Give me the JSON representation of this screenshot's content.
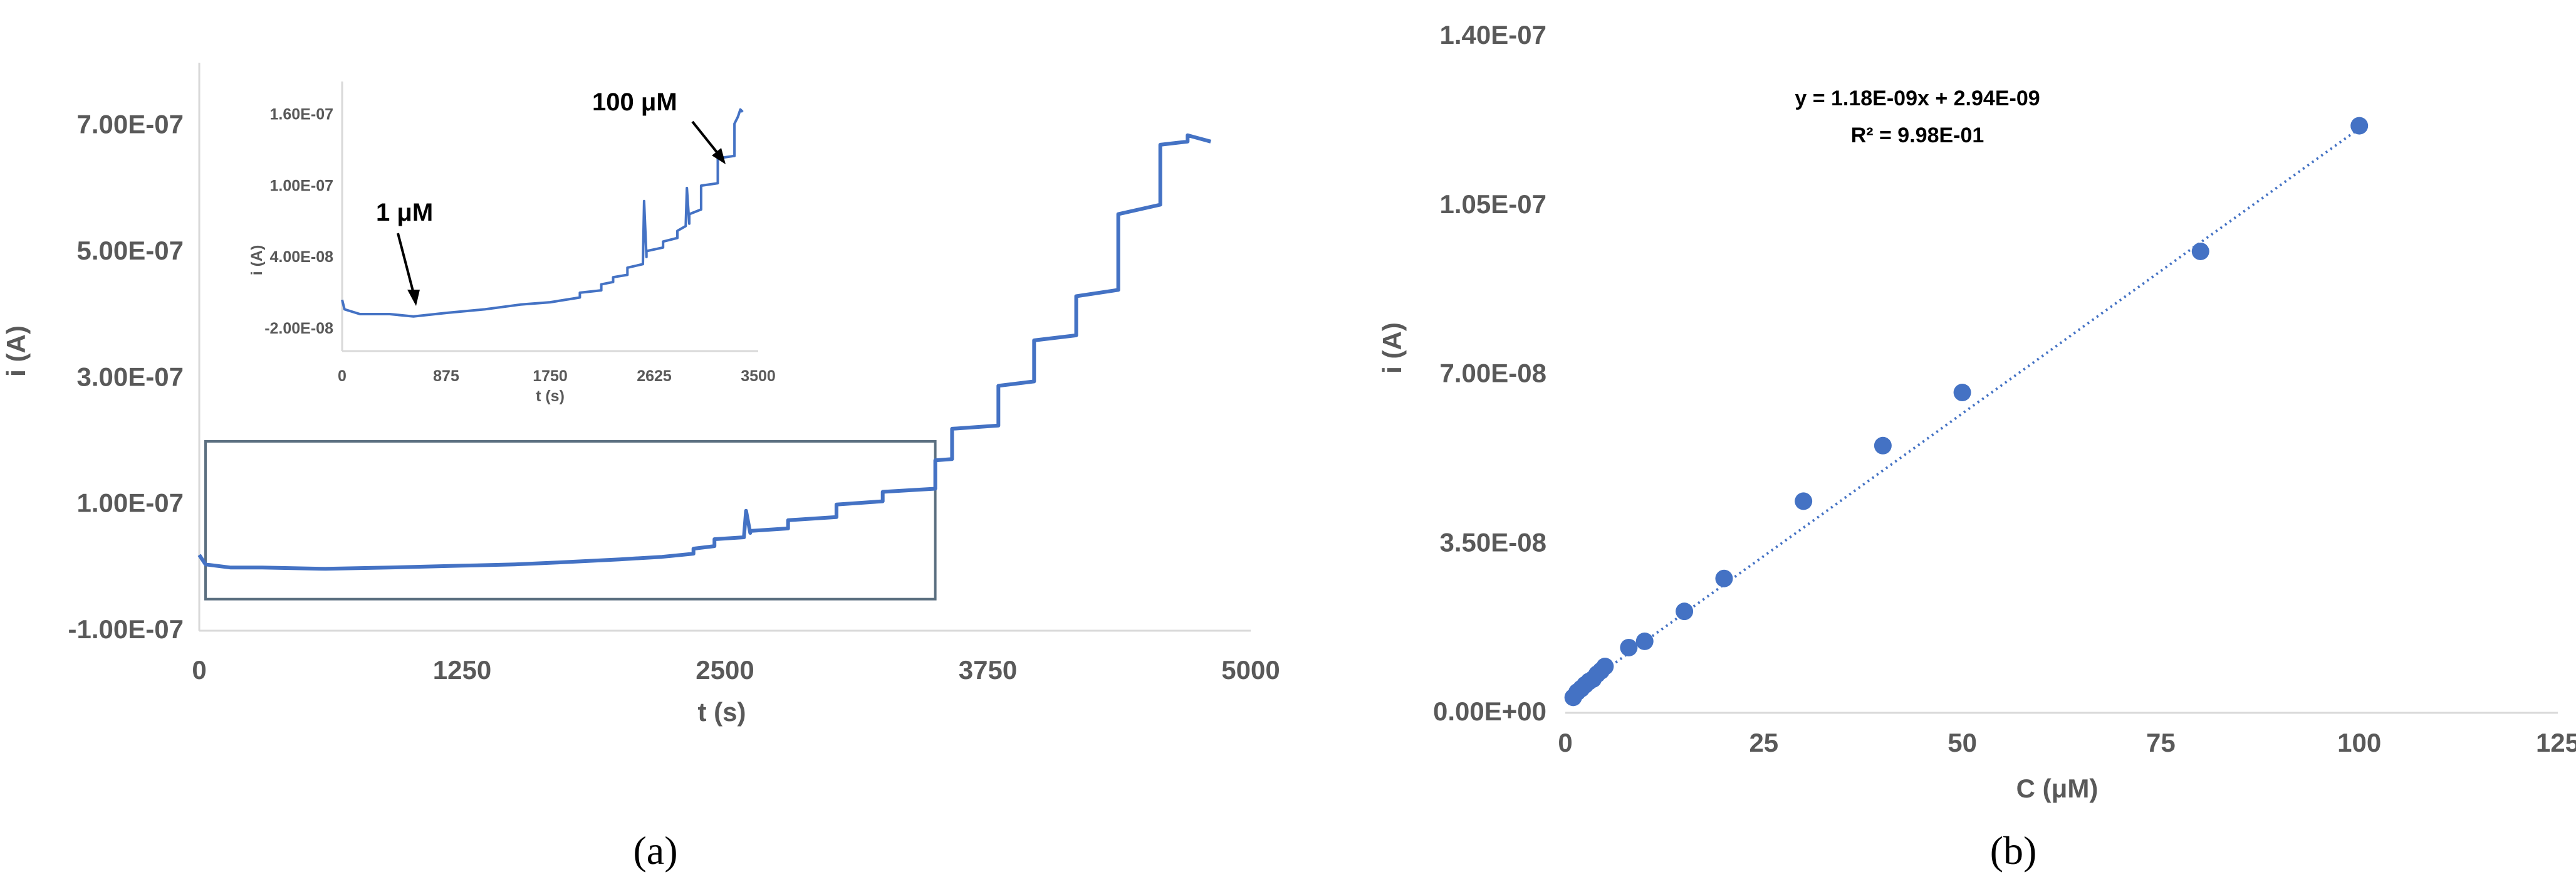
{
  "colors": {
    "series": "#4472C4",
    "axis": "#D9D9D9",
    "text": "#595959",
    "box": "#5B6F80"
  },
  "panel_labels": [
    "(a)",
    "(b)"
  ],
  "chart_data": [
    {
      "id": "a",
      "type": "line",
      "xlabel": "t (s)",
      "ylabel": "i (A)",
      "xlim": [
        0,
        5000
      ],
      "ylim": [
        -1e-07,
        8e-07
      ],
      "xticks": [
        0,
        1250,
        2500,
        3750,
        5000
      ],
      "xtick_labels": [
        "0",
        "1250",
        "2500",
        "3750",
        "5000"
      ],
      "yticks": [
        -1e-07,
        1e-07,
        3e-07,
        5e-07,
        7e-07
      ],
      "ytick_labels": [
        "-1.00E-07",
        "1.00E-07",
        "3.00E-07",
        "5.00E-07",
        "7.00E-07"
      ],
      "grid": false,
      "zoom_box": {
        "x": [
          0,
          3500
        ],
        "y": [
          -5e-08,
          2e-07
        ]
      },
      "series": [
        {
          "x": [
            0,
            30,
            150,
            300,
            600,
            900,
            1250,
            1500,
            1700,
            2000,
            2200,
            2350,
            2350,
            2450,
            2450,
            2590,
            2600,
            2620,
            2620,
            2800,
            2800,
            3030,
            3030,
            3250,
            3250,
            3500,
            3500,
            3580,
            3580,
            3800,
            3800,
            3970,
            3970,
            4170,
            4170,
            4370,
            4370,
            4570,
            4570,
            4700,
            4700,
            4810
          ],
          "y": [
            2e-08,
            5e-09,
            0.0,
            0.0,
            -2e-09,
            0.0,
            3e-09,
            5e-09,
            8e-09,
            1.3e-08,
            1.7e-08,
            2.2e-08,
            3e-08,
            3.4e-08,
            4.5e-08,
            4.8e-08,
            9e-08,
            5.5e-08,
            5.8e-08,
            6.2e-08,
            7.5e-08,
            8e-08,
            1e-07,
            1.05e-07,
            1.2e-07,
            1.25e-07,
            1.7e-07,
            1.72e-07,
            2.2e-07,
            2.25e-07,
            2.88e-07,
            2.95e-07,
            3.6e-07,
            3.68e-07,
            4.3e-07,
            4.4e-07,
            5.6e-07,
            5.75e-07,
            6.7e-07,
            6.75e-07,
            6.85e-07,
            6.75e-07
          ]
        }
      ]
    },
    {
      "id": "a-inset",
      "type": "line",
      "xlabel": "t (s)",
      "ylabel": "i (A)",
      "xlim": [
        0,
        3500
      ],
      "ylim": [
        -2e-08,
        1.75e-07
      ],
      "xticks": [
        0,
        875,
        1750,
        2625,
        3500
      ],
      "xtick_labels": [
        "0",
        "875",
        "1750",
        "2625",
        "3500"
      ],
      "yticks": [
        -2e-08,
        4e-08,
        1e-07,
        1.6e-07
      ],
      "ytick_labels": [
        "-2.00E-08",
        "4.00E-08",
        "1.00E-07",
        "1.60E-07"
      ],
      "grid": false,
      "annotations": [
        {
          "text": "1 μM",
          "x": 620,
          "y": -1.2e-08
        },
        {
          "text": "100 μM",
          "x": 3210,
          "y": 1.24e-07
        }
      ],
      "series": [
        {
          "x": [
            0,
            20,
            150,
            400,
            600,
            875,
            1200,
            1500,
            1750,
            2000,
            2000,
            2180,
            2180,
            2280,
            2280,
            2400,
            2400,
            2530,
            2540,
            2560,
            2560,
            2700,
            2700,
            2820,
            2820,
            2890,
            2900,
            2920,
            2920,
            3020,
            3020,
            3160,
            3160,
            3300,
            3300,
            3330,
            3350,
            3370
          ],
          "y": [
            2e-09,
            -6e-09,
            -1e-08,
            -1e-08,
            -1.2e-08,
            -9e-09,
            -6e-09,
            -2e-09,
            0.0,
            4e-09,
            8e-09,
            1e-08,
            1.5e-08,
            1.7e-08,
            2.1e-08,
            2.3e-08,
            2.9e-08,
            3.2e-08,
            8.5e-08,
            3.8e-08,
            4.3e-08,
            4.6e-08,
            5.1e-08,
            5.4e-08,
            6e-08,
            6.4e-08,
            9.6e-08,
            6.6e-08,
            7.4e-08,
            7.8e-08,
            9.8e-08,
            1e-07,
            1.21e-07,
            1.23e-07,
            1.5e-07,
            1.56e-07,
            1.62e-07,
            1.6e-07
          ]
        }
      ]
    },
    {
      "id": "b",
      "type": "scatter",
      "xlabel": "C (μM)",
      "ylabel": "i (A)",
      "xlim": [
        0,
        125
      ],
      "ylim": [
        0,
        1.4e-07
      ],
      "xticks": [
        0,
        25,
        50,
        75,
        100,
        125
      ],
      "xtick_labels": [
        "0",
        "25",
        "50",
        "75",
        "100",
        "125"
      ],
      "yticks": [
        0,
        3.5e-08,
        7e-08,
        1.05e-07,
        1.4e-07
      ],
      "ytick_labels": [
        "0.00E+00",
        "3.50E-08",
        "7.00E-08",
        "1.05E-07",
        "1.40E-07"
      ],
      "grid": false,
      "trendline": {
        "slope": 1.18e-09,
        "intercept": 2.94e-09,
        "x": [
          0,
          100
        ]
      },
      "equation": "y = 1.18E-09x + 2.94E-09",
      "r_squared": "R² = 9.98E-01",
      "series": [
        {
          "x": [
            1,
            1.5,
            2,
            2.5,
            3,
            3.5,
            4,
            4.5,
            5,
            8,
            10,
            15,
            20,
            30,
            40,
            50,
            80,
            100
          ],
          "y": [
            3.2e-09,
            4.3e-09,
            5e-09,
            5.8e-09,
            6.5e-09,
            7e-09,
            8e-09,
            8.7e-09,
            9.6e-09,
            1.35e-08,
            1.48e-08,
            2.1e-08,
            2.78e-08,
            4.38e-08,
            5.53e-08,
            6.63e-08,
            9.55e-08,
            1.215e-07
          ]
        }
      ]
    }
  ]
}
